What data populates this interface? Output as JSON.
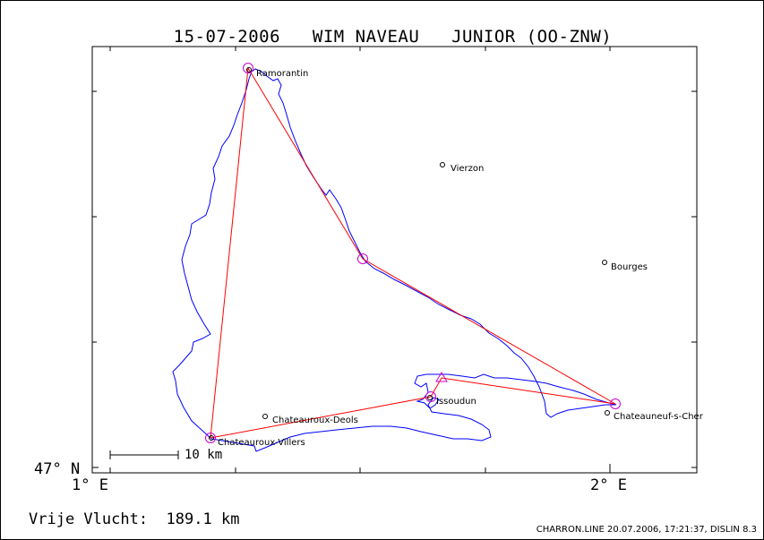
{
  "title": {
    "date": "15-07-2006",
    "pilot": "WIM NAVEAU",
    "glider": "JUNIOR (OO-ZNW)"
  },
  "axes": {
    "lat_label": "47° N",
    "lon_label_left": "1° E",
    "lon_label_right": "2° E"
  },
  "scale": {
    "label": "10 km"
  },
  "footer": {
    "distance_label": "Vrije Vlucht:",
    "distance_value": "189.1 km",
    "credits": "CHARRON.LINE 20.07.2006, 17:21:37, DISLIN 8.3"
  },
  "cities": [
    {
      "name": "Ramorantin"
    },
    {
      "name": "Vierzon"
    },
    {
      "name": "Bourges"
    },
    {
      "name": "Issoudun"
    },
    {
      "name": "Chateauroux-Deols"
    },
    {
      "name": "Chateauroux-Villers"
    },
    {
      "name": "Chateauneuf-s-Cher"
    }
  ],
  "colors": {
    "track": "#0000ff",
    "task_line": "#ff0000",
    "turnpoint": "#cc00cc",
    "frame": "#000000"
  }
}
